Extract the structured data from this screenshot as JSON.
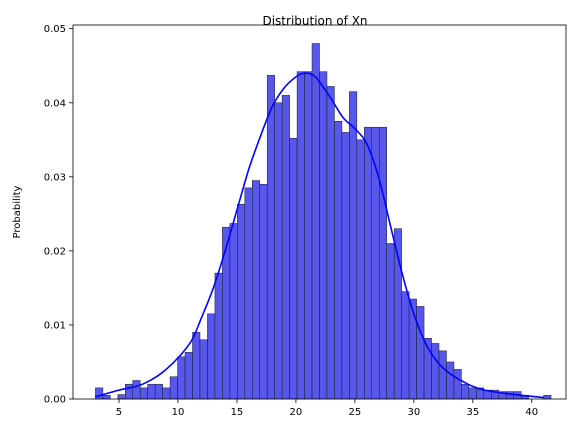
{
  "chart_data": {
    "type": "bar",
    "title": "Distribution of Xn",
    "xlabel": "",
    "ylabel": "Probability",
    "xlim": [
      1.1,
      42.9
    ],
    "ylim": [
      0,
      0.0505
    ],
    "xticks": [
      5,
      10,
      15,
      20,
      25,
      30,
      35,
      40
    ],
    "yticks": [
      0.0,
      0.01,
      0.02,
      0.03,
      0.04,
      0.05
    ],
    "ytick_labels": [
      "0.00",
      "0.01",
      "0.02",
      "0.03",
      "0.04",
      "0.05"
    ],
    "bin_start": 3.0,
    "bin_width": 0.6333,
    "bar_color": "#5757ec",
    "bar_edge_color": "#1a1a1a",
    "kde_color": "#0000ff",
    "grid": false,
    "values": [
      0.0015,
      0.0005,
      0.0,
      0.0006,
      0.002,
      0.0025,
      0.0015,
      0.002,
      0.002,
      0.0015,
      0.003,
      0.0057,
      0.0063,
      0.009,
      0.008,
      0.0115,
      0.017,
      0.0232,
      0.0237,
      0.0263,
      0.0285,
      0.0295,
      0.029,
      0.0437,
      0.04,
      0.041,
      0.0352,
      0.0442,
      0.0442,
      0.048,
      0.0442,
      0.0422,
      0.0375,
      0.036,
      0.0415,
      0.035,
      0.0367,
      0.0367,
      0.0367,
      0.021,
      0.023,
      0.0145,
      0.0135,
      0.0125,
      0.0082,
      0.0075,
      0.0065,
      0.005,
      0.004,
      0.002,
      0.0015,
      0.0015,
      0.0012,
      0.0012,
      0.001,
      0.001,
      0.001,
      0.0005,
      0.0,
      0.0,
      0.0005
    ],
    "kde": {
      "x": [
        3,
        5,
        7,
        9,
        11,
        12,
        13,
        14,
        15,
        16,
        17,
        18,
        19,
        20,
        20.7,
        21.5,
        22,
        23,
        24,
        25,
        26,
        27,
        28,
        29,
        30,
        31,
        32,
        33,
        34,
        35,
        36,
        38,
        41
      ],
      "y": [
        0.0003,
        0.0012,
        0.002,
        0.004,
        0.0075,
        0.011,
        0.015,
        0.02,
        0.0255,
        0.031,
        0.0355,
        0.0395,
        0.042,
        0.0435,
        0.044,
        0.0437,
        0.0428,
        0.0405,
        0.038,
        0.0365,
        0.0345,
        0.03,
        0.0235,
        0.017,
        0.0115,
        0.0075,
        0.005,
        0.0035,
        0.0025,
        0.0017,
        0.0012,
        0.0007,
        0.0002
      ]
    }
  }
}
